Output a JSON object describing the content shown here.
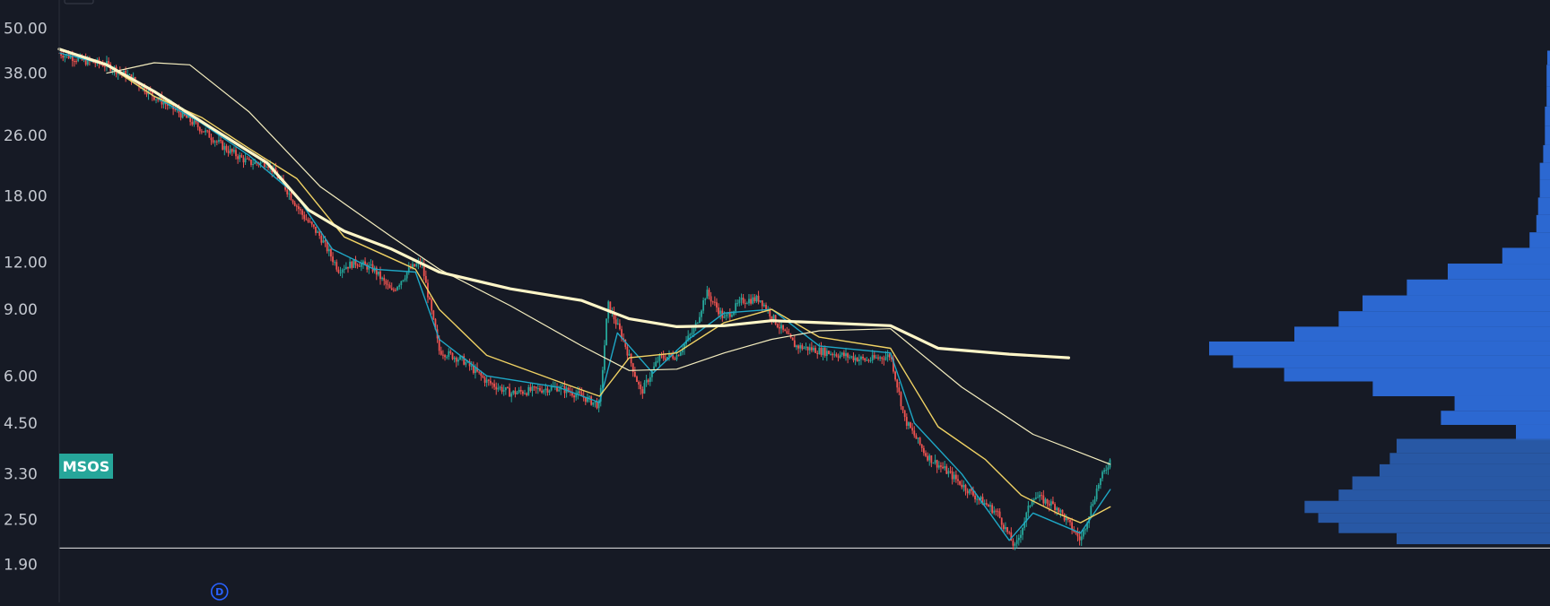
{
  "chart_data": {
    "type": "line",
    "ticker": "MSOS",
    "scale": "log",
    "y_ticks": [
      "50.00",
      "38.00",
      "26.00",
      "18.00",
      "12.00",
      "9.00",
      "6.00",
      "4.50",
      "3.30",
      "2.50",
      "1.90"
    ],
    "ylim": [
      1.7,
      55
    ],
    "x_range": [
      0,
      1000
    ],
    "event_marker": {
      "label": "D",
      "x": 135
    },
    "low_line": 2.1,
    "colors": {
      "background": "#161a25",
      "axis": "#2a2e39",
      "tick_text": "#c4c8d0",
      "up": "#26a69a",
      "down": "#ef5350",
      "ma_fast": "#1ea7c5",
      "ma_mid": "#f0d264",
      "ma_slow": "#f5eebf",
      "vwap": "#fff6c8",
      "volume_profile": "#2f6fe0",
      "badge": "#26a69a"
    },
    "price_keypoints": [
      [
        0,
        43
      ],
      [
        20,
        41
      ],
      [
        40,
        40
      ],
      [
        60,
        37
      ],
      [
        80,
        33
      ],
      [
        100,
        30
      ],
      [
        120,
        27
      ],
      [
        140,
        24
      ],
      [
        160,
        22
      ],
      [
        175,
        22
      ],
      [
        190,
        19
      ],
      [
        205,
        16
      ],
      [
        220,
        14
      ],
      [
        235,
        11.5
      ],
      [
        250,
        12
      ],
      [
        265,
        11.5
      ],
      [
        280,
        10
      ],
      [
        295,
        11.5
      ],
      [
        305,
        12
      ],
      [
        320,
        7
      ],
      [
        340,
        6.6
      ],
      [
        360,
        5.8
      ],
      [
        380,
        5.4
      ],
      [
        400,
        5.5
      ],
      [
        420,
        5.6
      ],
      [
        440,
        5.3
      ],
      [
        455,
        5.0
      ],
      [
        462,
        9.3
      ],
      [
        475,
        7.5
      ],
      [
        490,
        5.4
      ],
      [
        505,
        6.7
      ],
      [
        520,
        6.8
      ],
      [
        535,
        8.0
      ],
      [
        545,
        10.0
      ],
      [
        560,
        8.5
      ],
      [
        575,
        9.5
      ],
      [
        590,
        9.6
      ],
      [
        605,
        8.2
      ],
      [
        620,
        7.2
      ],
      [
        640,
        7.0
      ],
      [
        660,
        6.8
      ],
      [
        680,
        6.6
      ],
      [
        700,
        6.8
      ],
      [
        712,
        4.6
      ],
      [
        730,
        3.7
      ],
      [
        750,
        3.3
      ],
      [
        770,
        2.9
      ],
      [
        790,
        2.6
      ],
      [
        805,
        2.1
      ],
      [
        820,
        2.9
      ],
      [
        840,
        2.7
      ],
      [
        860,
        2.2
      ],
      [
        875,
        3.1
      ],
      [
        885,
        3.6
      ]
    ],
    "series": [
      {
        "kind": "ma-fast",
        "values": [
          [
            0,
            43
          ],
          [
            40,
            40
          ],
          [
            80,
            33
          ],
          [
            120,
            28
          ],
          [
            160,
            23
          ],
          [
            200,
            18
          ],
          [
            230,
            13
          ],
          [
            265,
            11.5
          ],
          [
            300,
            11.3
          ],
          [
            320,
            7.5
          ],
          [
            360,
            6.0
          ],
          [
            420,
            5.6
          ],
          [
            455,
            5.1
          ],
          [
            470,
            7.8
          ],
          [
            500,
            6.1
          ],
          [
            530,
            7.5
          ],
          [
            560,
            8.8
          ],
          [
            600,
            9.0
          ],
          [
            640,
            7.2
          ],
          [
            700,
            6.9
          ],
          [
            720,
            4.5
          ],
          [
            760,
            3.3
          ],
          [
            800,
            2.2
          ],
          [
            820,
            2.6
          ],
          [
            860,
            2.3
          ],
          [
            885,
            3.0
          ]
        ]
      },
      {
        "kind": "ma-mid",
        "values": [
          [
            0,
            44
          ],
          [
            40,
            40
          ],
          [
            80,
            33
          ],
          [
            120,
            29
          ],
          [
            160,
            24
          ],
          [
            200,
            20
          ],
          [
            240,
            14
          ],
          [
            300,
            11.5
          ],
          [
            320,
            9
          ],
          [
            360,
            6.8
          ],
          [
            420,
            5.8
          ],
          [
            455,
            5.3
          ],
          [
            480,
            6.7
          ],
          [
            520,
            6.9
          ],
          [
            560,
            8.3
          ],
          [
            600,
            9.0
          ],
          [
            640,
            7.6
          ],
          [
            700,
            7.1
          ],
          [
            740,
            4.4
          ],
          [
            780,
            3.6
          ],
          [
            810,
            2.9
          ],
          [
            840,
            2.6
          ],
          [
            860,
            2.45
          ],
          [
            885,
            2.7
          ]
        ]
      },
      {
        "kind": "ma-slow",
        "values": [
          [
            40,
            38
          ],
          [
            80,
            40.5
          ],
          [
            110,
            40
          ],
          [
            160,
            30
          ],
          [
            220,
            19
          ],
          [
            280,
            14
          ],
          [
            320,
            11.5
          ],
          [
            380,
            9.2
          ],
          [
            440,
            7.2
          ],
          [
            480,
            6.2
          ],
          [
            520,
            6.25
          ],
          [
            560,
            6.9
          ],
          [
            600,
            7.5
          ],
          [
            640,
            7.9
          ],
          [
            700,
            8.0
          ],
          [
            760,
            5.6
          ],
          [
            820,
            4.2
          ],
          [
            885,
            3.5
          ]
        ]
      },
      {
        "kind": "vwap",
        "values": [
          [
            0,
            44
          ],
          [
            40,
            40
          ],
          [
            80,
            34
          ],
          [
            130,
            27
          ],
          [
            175,
            22
          ],
          [
            210,
            16.5
          ],
          [
            240,
            14.5
          ],
          [
            280,
            13
          ],
          [
            320,
            11.3
          ],
          [
            380,
            10.2
          ],
          [
            440,
            9.5
          ],
          [
            480,
            8.5
          ],
          [
            520,
            8.1
          ],
          [
            560,
            8.15
          ],
          [
            600,
            8.4
          ],
          [
            640,
            8.3
          ],
          [
            700,
            8.15
          ],
          [
            740,
            7.1
          ],
          [
            800,
            6.85
          ],
          [
            850,
            6.7
          ]
        ]
      }
    ],
    "volume_profile": [
      [
        4.05,
        0.1
      ],
      [
        4.45,
        0.32
      ],
      [
        4.85,
        0.28
      ],
      [
        5.3,
        0.52
      ],
      [
        5.8,
        0.78
      ],
      [
        6.3,
        0.93
      ],
      [
        6.8,
        1.0
      ],
      [
        7.4,
        0.75
      ],
      [
        8.1,
        0.62
      ],
      [
        8.9,
        0.55
      ],
      [
        9.8,
        0.42
      ],
      [
        10.8,
        0.3
      ],
      [
        11.9,
        0.14
      ],
      [
        13.1,
        0.06
      ],
      [
        14.4,
        0.04
      ],
      [
        16.0,
        0.035
      ],
      [
        17.8,
        0.03
      ],
      [
        19.8,
        0.03
      ],
      [
        22.0,
        0.02
      ],
      [
        24.5,
        0.015
      ],
      [
        27.5,
        0.015
      ],
      [
        31.0,
        0.01
      ],
      [
        35.0,
        0.01
      ],
      [
        40.0,
        0.008
      ]
    ],
    "volume_profile_low": [
      [
        2.15,
        0.45
      ],
      [
        2.3,
        0.62
      ],
      [
        2.45,
        0.68
      ],
      [
        2.6,
        0.72
      ],
      [
        2.8,
        0.62
      ],
      [
        3.0,
        0.58
      ],
      [
        3.25,
        0.5
      ],
      [
        3.5,
        0.47
      ],
      [
        3.75,
        0.45
      ]
    ]
  }
}
